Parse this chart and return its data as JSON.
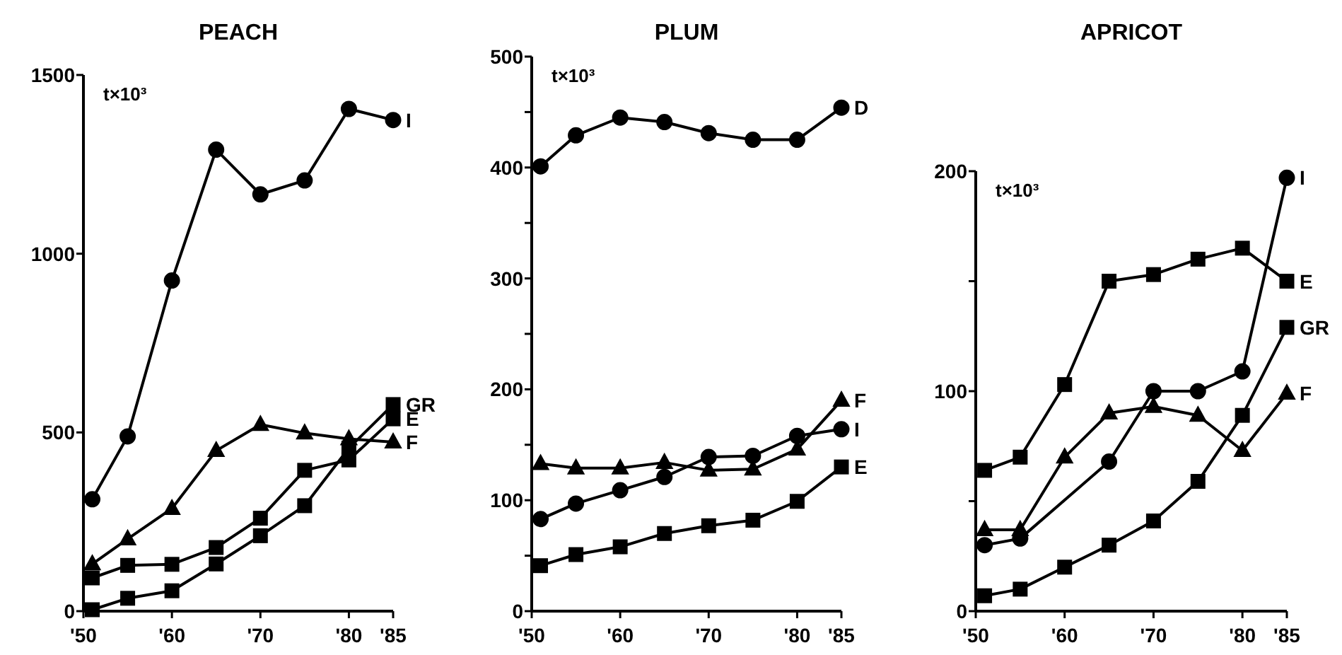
{
  "chart_data": [
    {
      "type": "line",
      "title": "PEACH",
      "ylabel": "t×10³",
      "xlim": [
        1950,
        1985
      ],
      "xticks": [
        {
          "value": 1950,
          "label": "'50"
        },
        {
          "value": 1960,
          "label": "'60"
        },
        {
          "value": 1970,
          "label": "'70"
        },
        {
          "value": 1980,
          "label": "'80"
        },
        {
          "value": 1985,
          "label": "'85"
        }
      ],
      "ylim": [
        0,
        1500
      ],
      "yticks": [
        0,
        500,
        1000,
        1500
      ],
      "series": [
        {
          "name": "I",
          "color": "#000000",
          "marker": "circle",
          "x": [
            1951,
            1955,
            1960,
            1965,
            1970,
            1975,
            1980,
            1985
          ],
          "values": [
            313,
            489,
            925,
            1291,
            1166,
            1205,
            1405,
            1374
          ]
        },
        {
          "name": "GR",
          "color": "#000000",
          "marker": "square",
          "x": [
            1951,
            1955,
            1960,
            1965,
            1970,
            1975,
            1980,
            1985
          ],
          "values": [
            4,
            36,
            57,
            132,
            211,
            295,
            456,
            578
          ]
        },
        {
          "name": "E",
          "color": "#000000",
          "marker": "square",
          "x": [
            1951,
            1955,
            1960,
            1965,
            1970,
            1975,
            1980,
            1985
          ],
          "values": [
            93,
            128,
            131,
            178,
            260,
            394,
            423,
            538
          ]
        },
        {
          "name": "F",
          "color": "#000000",
          "marker": "triangle",
          "x": [
            1951,
            1955,
            1960,
            1965,
            1970,
            1975,
            1980,
            1985
          ],
          "values": [
            132,
            202,
            287,
            449,
            522,
            498,
            482,
            473
          ]
        }
      ]
    },
    {
      "type": "line",
      "title": "PLUM",
      "ylabel": "t×10³",
      "xlim": [
        1950,
        1985
      ],
      "xticks": [
        {
          "value": 1950,
          "label": "'50"
        },
        {
          "value": 1960,
          "label": "'60"
        },
        {
          "value": 1970,
          "label": "'70"
        },
        {
          "value": 1980,
          "label": "'80"
        },
        {
          "value": 1985,
          "label": "'85"
        }
      ],
      "ylim": [
        0,
        500
      ],
      "yticks": [
        0,
        {
          "value": 50,
          "label": null
        },
        100,
        {
          "value": 150,
          "label": null
        },
        200,
        {
          "value": 250,
          "label": null
        },
        300,
        {
          "value": 350,
          "label": null
        },
        400,
        {
          "value": 450,
          "label": null
        },
        500
      ],
      "series": [
        {
          "name": "D",
          "color": "#000000",
          "marker": "circle",
          "x": [
            1951,
            1955,
            1960,
            1965,
            1970,
            1975,
            1980,
            1985
          ],
          "values": [
            401,
            429,
            445,
            441,
            431,
            425,
            425,
            454
          ]
        },
        {
          "name": "F",
          "color": "#000000",
          "marker": "triangle",
          "x": [
            1951,
            1955,
            1960,
            1965,
            1970,
            1975,
            1980,
            1985
          ],
          "values": [
            133,
            129,
            129,
            134,
            127,
            128,
            146,
            190
          ]
        },
        {
          "name": "I",
          "color": "#000000",
          "marker": "circle",
          "x": [
            1951,
            1955,
            1960,
            1965,
            1970,
            1975,
            1980,
            1985
          ],
          "values": [
            83,
            97,
            109,
            121,
            139,
            140,
            158,
            164
          ]
        },
        {
          "name": "E",
          "color": "#000000",
          "marker": "square",
          "x": [
            1951,
            1955,
            1960,
            1965,
            1970,
            1975,
            1980,
            1985
          ],
          "values": [
            41,
            51,
            58,
            70,
            77,
            82,
            99,
            130
          ]
        }
      ]
    },
    {
      "type": "line",
      "title": "APRICOT",
      "ylabel": "t×10³",
      "xlim": [
        1950,
        1985
      ],
      "xticks": [
        {
          "value": 1950,
          "label": "'50"
        },
        {
          "value": 1960,
          "label": "'60"
        },
        {
          "value": 1970,
          "label": "'70"
        },
        {
          "value": 1980,
          "label": "'80"
        },
        {
          "value": 1985,
          "label": "'85"
        }
      ],
      "ylim": [
        0,
        200
      ],
      "yticks": [
        0,
        {
          "value": 50,
          "label": null
        },
        100,
        {
          "value": 150,
          "label": null
        },
        200
      ],
      "series": [
        {
          "name": "I",
          "color": "#000000",
          "marker": "circle",
          "x": [
            1951,
            1955,
            1965,
            1970,
            1975,
            1980,
            1985
          ],
          "values": [
            30,
            33,
            68,
            100,
            100,
            109,
            197
          ]
        },
        {
          "name": "E",
          "color": "#000000",
          "marker": "square",
          "x": [
            1951,
            1955,
            1960,
            1965,
            1970,
            1975,
            1980,
            1985
          ],
          "values": [
            64,
            70,
            103,
            150,
            153,
            160,
            165,
            150
          ]
        },
        {
          "name": "GR",
          "color": "#000000",
          "marker": "square",
          "x": [
            1951,
            1955,
            1960,
            1965,
            1970,
            1975,
            1980,
            1985
          ],
          "values": [
            7,
            10,
            20,
            30,
            41,
            59,
            89,
            129
          ]
        },
        {
          "name": "F",
          "color": "#000000",
          "marker": "triangle",
          "x": [
            1951,
            1955,
            1960,
            1965,
            1970,
            1975,
            1980,
            1985
          ],
          "values": [
            37,
            37,
            70,
            90,
            93,
            89,
            73,
            99
          ]
        }
      ]
    }
  ]
}
